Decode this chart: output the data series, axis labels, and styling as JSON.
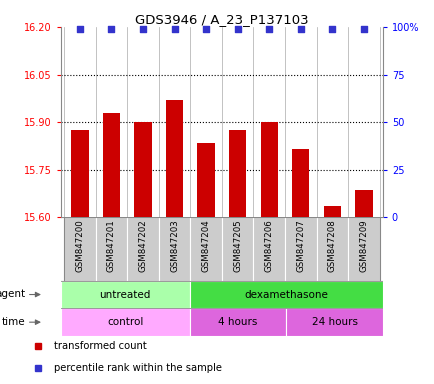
{
  "title": "GDS3946 / A_23_P137103",
  "samples": [
    "GSM847200",
    "GSM847201",
    "GSM847202",
    "GSM847203",
    "GSM847204",
    "GSM847205",
    "GSM847206",
    "GSM847207",
    "GSM847208",
    "GSM847209"
  ],
  "bar_values": [
    15.875,
    15.93,
    15.9,
    15.97,
    15.835,
    15.875,
    15.9,
    15.815,
    15.635,
    15.685
  ],
  "bar_color": "#cc0000",
  "percentile_color": "#3333cc",
  "ylim_left": [
    15.6,
    16.2
  ],
  "ylim_right": [
    0,
    100
  ],
  "yticks_left": [
    15.6,
    15.75,
    15.9,
    16.05,
    16.2
  ],
  "yticks_right": [
    0,
    25,
    50,
    75,
    100
  ],
  "ytick_labels_right": [
    "0",
    "25",
    "50",
    "75",
    "100%"
  ],
  "dotted_lines": [
    15.75,
    15.9,
    16.05
  ],
  "agent_labels": [
    {
      "text": "untreated",
      "start": 0,
      "end": 3,
      "color": "#aaffaa"
    },
    {
      "text": "dexamethasone",
      "start": 4,
      "end": 9,
      "color": "#44dd44"
    }
  ],
  "time_labels": [
    {
      "text": "control",
      "start": 0,
      "end": 3,
      "color": "#ffaaff"
    },
    {
      "text": "4 hours",
      "start": 4,
      "end": 6,
      "color": "#dd66dd"
    },
    {
      "text": "24 hours",
      "start": 7,
      "end": 9,
      "color": "#dd66dd"
    }
  ],
  "legend_items": [
    {
      "label": "transformed count",
      "color": "#cc0000"
    },
    {
      "label": "percentile rank within the sample",
      "color": "#3333cc"
    }
  ],
  "agent_row_label": "agent",
  "time_row_label": "time",
  "xtick_bg_color": "#cccccc",
  "spine_color": "#888888"
}
